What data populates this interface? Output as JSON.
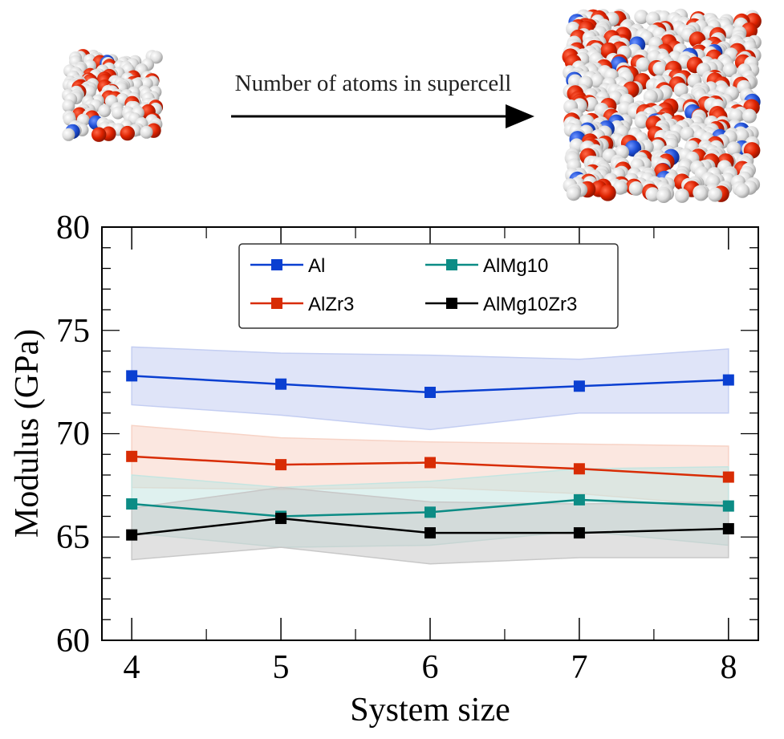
{
  "header": {
    "arrow_label": "Number of atoms in supercell"
  },
  "colors": {
    "atom_white": "#e4e4e4",
    "atom_red": "#dd2200",
    "atom_blue": "#1f4fd6"
  },
  "chart_data": {
    "type": "line",
    "title": "",
    "xlabel": "System size",
    "ylabel": "Modulus (GPa)",
    "x": [
      4,
      5,
      6,
      7,
      8
    ],
    "xlim": [
      3.8,
      8.2
    ],
    "ylim": [
      60,
      80
    ],
    "xticks": [
      "4",
      "5",
      "6",
      "7",
      "8"
    ],
    "yticks": [
      "60",
      "65",
      "70",
      "75",
      "80"
    ],
    "legend_position": "top-center",
    "series": [
      {
        "name": "Al",
        "color": "#0a3fd1",
        "band_color": "#c4cef2",
        "values": [
          72.8,
          72.4,
          72.0,
          72.3,
          72.6
        ],
        "upper": [
          74.2,
          73.9,
          73.8,
          73.6,
          74.1
        ],
        "lower": [
          71.4,
          70.9,
          70.2,
          71.0,
          71.0
        ]
      },
      {
        "name": "AlZr3",
        "color": "#d82c04",
        "band_color": "#f7d3c6",
        "values": [
          68.9,
          68.5,
          68.6,
          68.3,
          67.9
        ],
        "upper": [
          70.4,
          69.8,
          69.6,
          69.5,
          69.4
        ],
        "lower": [
          67.4,
          67.3,
          67.4,
          67.1,
          66.5
        ]
      },
      {
        "name": "AlMg10",
        "color": "#0c8c85",
        "band_color": "#c5e5e1",
        "values": [
          66.6,
          66.0,
          66.2,
          66.8,
          66.5
        ],
        "upper": [
          68.0,
          67.4,
          67.7,
          68.3,
          68.4
        ],
        "lower": [
          65.2,
          64.5,
          64.6,
          65.3,
          64.6
        ]
      },
      {
        "name": "AlMg10Zr3",
        "color": "#000000",
        "band_color": "#c8c8c8",
        "values": [
          65.1,
          65.9,
          65.2,
          65.2,
          65.4
        ],
        "upper": [
          66.4,
          67.4,
          66.7,
          66.6,
          66.7
        ],
        "lower": [
          63.9,
          64.5,
          63.7,
          64.0,
          64.0
        ]
      }
    ]
  }
}
